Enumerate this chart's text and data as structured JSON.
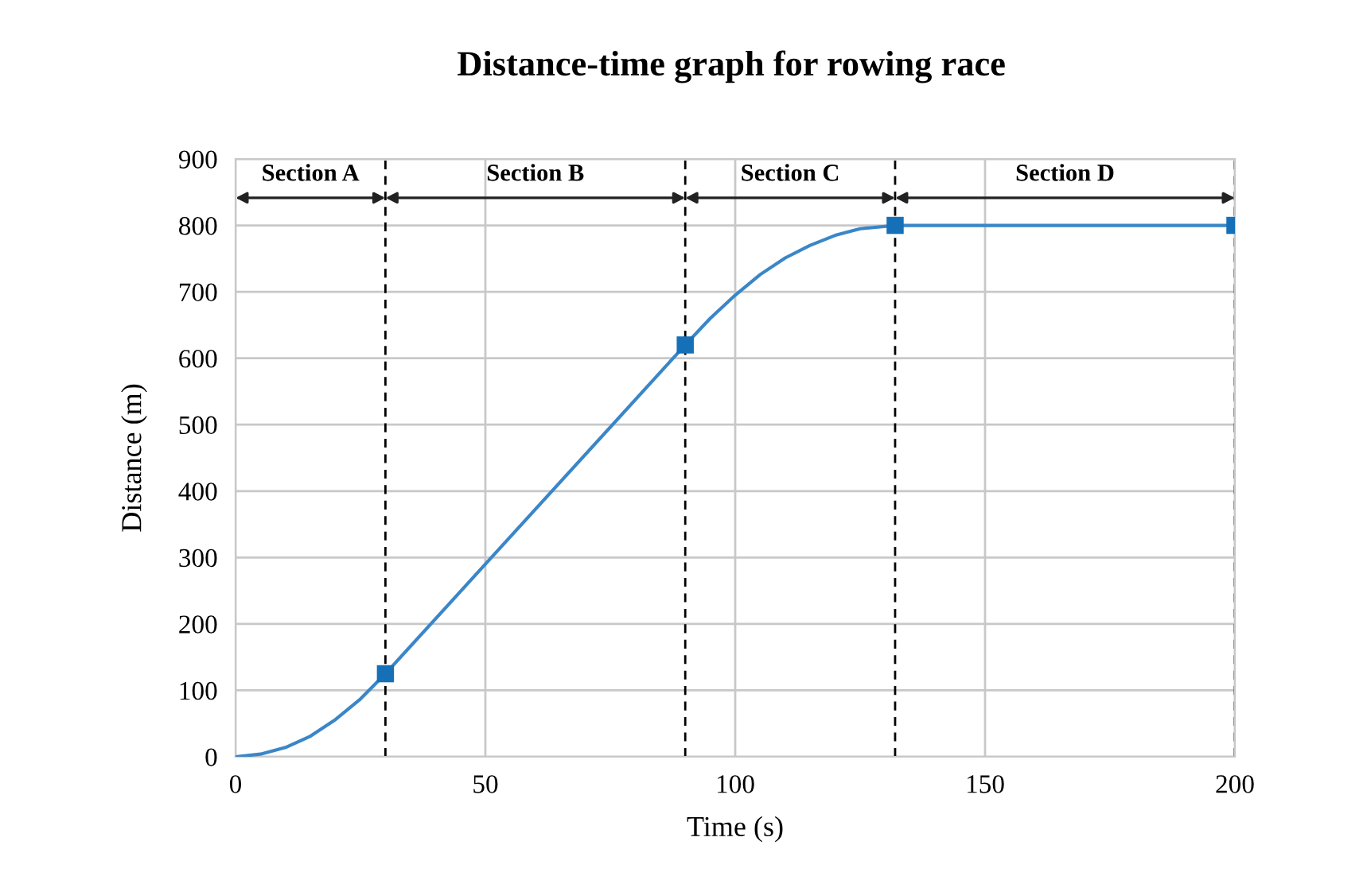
{
  "chart_data": {
    "type": "line",
    "title": "Distance-time graph for rowing race",
    "xlabel": "Time (s)",
    "ylabel": "Distance (m)",
    "xlim": [
      0,
      200
    ],
    "xticks": [
      0,
      50,
      100,
      150,
      200
    ],
    "ylim": [
      0,
      900
    ],
    "yticks": [
      0,
      100,
      200,
      300,
      400,
      500,
      600,
      700,
      800,
      900
    ],
    "grid": true,
    "legend": false,
    "series": [
      {
        "color": "#3a86c8",
        "marker": "none",
        "line_style": "solid",
        "x": [
          0,
          5,
          10,
          15,
          20,
          25,
          30,
          50,
          90,
          95,
          100,
          105,
          110,
          115,
          120,
          125,
          132,
          200
        ],
        "values": [
          0,
          4,
          14,
          31,
          56,
          87,
          125,
          290,
          620,
          660,
          695,
          726,
          751,
          770,
          785,
          795,
          800,
          800
        ]
      },
      {
        "type": "scatter",
        "color": "#1670b8",
        "marker": "square",
        "x": [
          30,
          90,
          132,
          200
        ],
        "values": [
          125,
          620,
          800,
          800
        ]
      }
    ],
    "ref_lines": [
      {
        "axis": "x",
        "value": 30,
        "color": "#000000",
        "line_style": "dashed"
      },
      {
        "axis": "x",
        "value": 90,
        "color": "#000000",
        "line_style": "dashed"
      },
      {
        "axis": "x",
        "value": 132,
        "color": "#000000",
        "line_style": "dashed"
      },
      {
        "axis": "x",
        "value": 200,
        "color": "#000000",
        "line_style": "dashed"
      }
    ],
    "annotations": [
      "Section A",
      "Section B",
      "Section C",
      "Section D"
    ]
  }
}
